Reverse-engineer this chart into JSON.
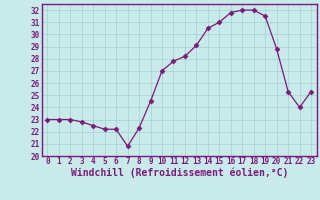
{
  "x": [
    0,
    1,
    2,
    3,
    4,
    5,
    6,
    7,
    8,
    9,
    10,
    11,
    12,
    13,
    14,
    15,
    16,
    17,
    18,
    19,
    20,
    21,
    22,
    23
  ],
  "y": [
    23.0,
    23.0,
    23.0,
    22.8,
    22.5,
    22.2,
    22.2,
    20.8,
    22.3,
    24.5,
    27.0,
    27.8,
    28.2,
    29.1,
    30.5,
    31.0,
    31.8,
    32.0,
    32.0,
    31.5,
    28.8,
    25.3,
    24.0,
    25.3
  ],
  "line_color": "#7b1a7b",
  "marker": "D",
  "marker_size": 2.5,
  "bg_color": "#c8eaea",
  "grid_color": "#aad4d4",
  "xlabel": "Windchill (Refroidissement éolien,°C)",
  "xlabel_color": "#7b1a7b",
  "tick_color": "#7b1a7b",
  "ylim": [
    20,
    32.5
  ],
  "xlim": [
    -0.5,
    23.5
  ],
  "yticks": [
    20,
    21,
    22,
    23,
    24,
    25,
    26,
    27,
    28,
    29,
    30,
    31,
    32
  ],
  "xticks": [
    0,
    1,
    2,
    3,
    4,
    5,
    6,
    7,
    8,
    9,
    10,
    11,
    12,
    13,
    14,
    15,
    16,
    17,
    18,
    19,
    20,
    21,
    22,
    23
  ],
  "tick_fontsize": 5.5,
  "xlabel_fontsize": 7.0,
  "spine_color": "#7b1a7b"
}
